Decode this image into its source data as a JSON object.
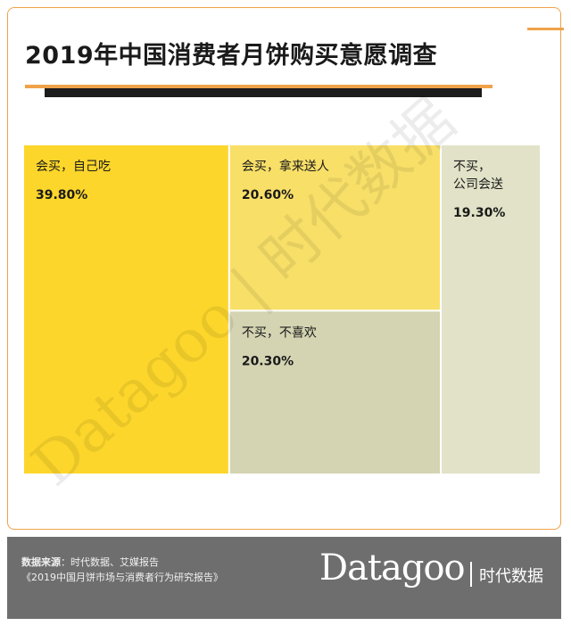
{
  "title": "2019年中国消费者月饼购买意愿调查",
  "chart_data": {
    "type": "treemap",
    "title": "2019年中国消费者月饼购买意愿调查",
    "items": [
      {
        "label": "会买，自己吃",
        "value": 39.8,
        "display": "39.80%",
        "color": "#fcd62b"
      },
      {
        "label": "会买，拿来送人",
        "value": 20.6,
        "display": "20.60%",
        "color": "#f8df68"
      },
      {
        "label": "不买，不喜欢",
        "value": 20.3,
        "display": "20.30%",
        "color": "#d4d4b3"
      },
      {
        "label": "不买，公司会送",
        "value": 19.3,
        "display": "19.30%",
        "color": "#e1e2c7",
        "label_lines": [
          "不买，",
          "公司会送"
        ]
      }
    ]
  },
  "watermark": "Datagoo | 时代数据",
  "footer": {
    "source_label": "数据来源",
    "source_text": "：时代数据、艾媒报告",
    "report": "《2019中国月饼市场与消费者行为研究报告》",
    "brand_logo": "Datagoo",
    "brand_cn": "时代数据"
  }
}
